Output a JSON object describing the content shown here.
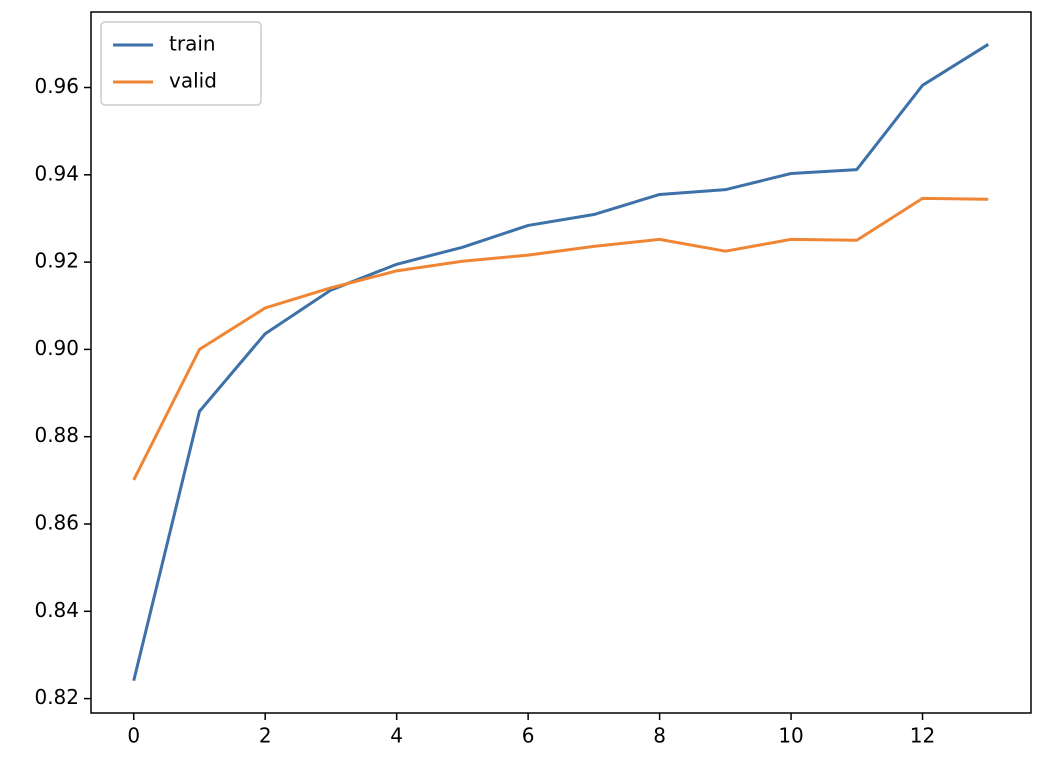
{
  "chart_data": {
    "type": "line",
    "x": [
      0,
      1,
      2,
      3,
      4,
      5,
      6,
      7,
      8,
      9,
      10,
      11,
      12,
      13
    ],
    "series": [
      {
        "name": "train",
        "color": "#3d71a7",
        "values": [
          0.8241,
          0.8858,
          0.9036,
          0.9136,
          0.9195,
          0.9234,
          0.9284,
          0.9309,
          0.9355,
          0.9366,
          0.9403,
          0.9412,
          0.9605,
          0.9699
        ]
      },
      {
        "name": "valid",
        "color": "#ef8636",
        "values": [
          0.8701,
          0.9,
          0.9095,
          0.9141,
          0.918,
          0.9202,
          0.9216,
          0.9236,
          0.9252,
          0.9225,
          0.9252,
          0.925,
          0.9346,
          0.9344
        ]
      }
    ],
    "xlim": [
      -0.65,
      13.65
    ],
    "ylim": [
      0.8167,
      0.9773
    ],
    "xticks": [
      0,
      2,
      4,
      6,
      8,
      10,
      12
    ],
    "yticks": [
      0.82,
      0.84,
      0.86,
      0.88,
      {
        "value": 0.9,
        "label": "0.90"
      },
      0.92,
      0.94,
      0.96
    ],
    "legend": "upper left"
  }
}
